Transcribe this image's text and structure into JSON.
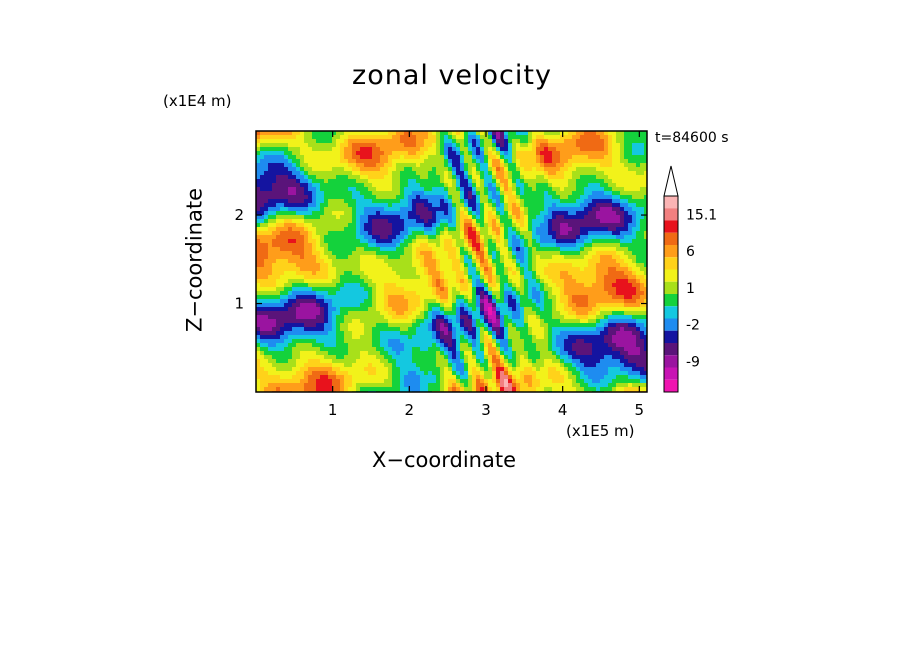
{
  "chart_data": {
    "type": "heatmap",
    "title": "zonal velocity",
    "xlabel": "X−coordinate",
    "ylabel": "Z−coordinate",
    "x_scale_label": "(x1E5 m)",
    "y_scale_label": "(x1E4 m)",
    "time_label": "t=84600 s",
    "xlim": [
      0,
      5.1
    ],
    "ylim": [
      0,
      2.95
    ],
    "x_ticks": [
      1,
      2,
      3,
      4,
      5
    ],
    "y_ticks": [
      1,
      2
    ],
    "colorbar": {
      "levels": [
        "",
        "15.1",
        "",
        "",
        "6",
        "",
        "",
        "1",
        "",
        "",
        "-2",
        "",
        "",
        "-9",
        "",
        ""
      ],
      "colors": [
        "#fbb4b4",
        "#f28080",
        "#e8121c",
        "#f06a14",
        "#ff9d1a",
        "#ffd21a",
        "#f2f21a",
        "#a8e01a",
        "#14d23c",
        "#14c8e0",
        "#1e8cf0",
        "#1414a0",
        "#5a147a",
        "#9a14a0",
        "#c814b4",
        "#f014b0"
      ],
      "top_extension_color": "#ffffff"
    },
    "field_description": "banded contour field of zonal velocity with tilted positive/negative layers"
  }
}
